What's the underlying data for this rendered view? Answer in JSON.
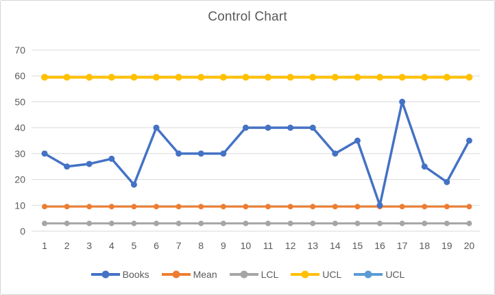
{
  "window": {
    "background": "#ffffff",
    "border_color": "#d4d4d4"
  },
  "chart_data": {
    "type": "line",
    "title": "Control Chart",
    "title_color": "#595959",
    "text_color": "#595959",
    "gridline_color": "#d9d9d9",
    "grid": true,
    "legend_position": "bottom",
    "xlabel": "",
    "ylabel": "",
    "ylim": [
      0,
      70
    ],
    "yticks": [
      0,
      10,
      20,
      30,
      40,
      50,
      60,
      70
    ],
    "categories": [
      1,
      2,
      3,
      4,
      5,
      6,
      7,
      8,
      9,
      10,
      11,
      12,
      13,
      14,
      15,
      16,
      17,
      18,
      19,
      20
    ],
    "series": [
      {
        "name": "Books",
        "color": "#4472c4",
        "values": [
          30,
          25,
          26,
          28,
          18,
          40,
          30,
          30,
          30,
          40,
          40,
          40,
          40,
          30,
          35,
          10,
          50,
          25,
          19,
          35
        ]
      },
      {
        "name": "Mean",
        "color": "#ed7d31",
        "constant": 9.5
      },
      {
        "name": "LCL",
        "color": "#a5a5a5",
        "constant": 3
      },
      {
        "name": "UCL",
        "color": "#ffc000",
        "constant": 59.5
      },
      {
        "name": "UCL",
        "color": "#5b9bd5",
        "constant": 59.5,
        "plotted": false
      }
    ]
  }
}
